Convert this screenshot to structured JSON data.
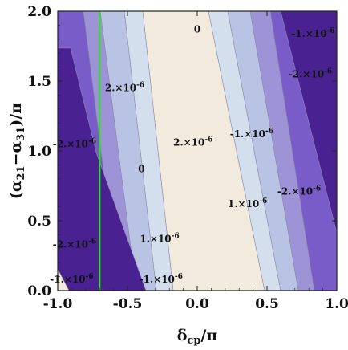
{
  "chart_data": {
    "type": "contour",
    "title": "",
    "xlabel": "δcp/π",
    "xlabel_main": "δ",
    "xlabel_sub": "cp",
    "xlabel_tail": "/π",
    "ylabel": "(α21−α31)/π",
    "ylabel_open": "(α",
    "ylabel_sub1": "21",
    "ylabel_mid": "−α",
    "ylabel_sub2": "31",
    "ylabel_tail": ")/π",
    "xlim": [
      -1.0,
      1.0
    ],
    "ylim": [
      0.0,
      2.0
    ],
    "xticks": [
      "-1.0",
      "-0.5",
      "0.0",
      "0.5",
      "1.0"
    ],
    "xtick_values": [
      -1.0,
      -0.5,
      0.0,
      0.5,
      1.0
    ],
    "yticks": [
      "0.0",
      "0.5",
      "1.0",
      "1.5",
      "2.0"
    ],
    "ytick_values": [
      0.0,
      0.5,
      1.0,
      1.5,
      2.0
    ],
    "contour_levels": [
      "-2.×10^-6",
      "-1.×10^-6",
      "0",
      "1.×10^-6",
      "2.×10^-6"
    ],
    "band_colors": [
      "#4a2190",
      "#7a5cc8",
      "#9e93d6",
      "#b9c4e4",
      "#d4dfee",
      "#f2ebdd"
    ],
    "vertical_line": {
      "x": -0.7,
      "color": "#33dd33"
    },
    "contour_labels": [
      {
        "x": -0.88,
        "y": 1.05,
        "mant": "-2.×10",
        "exp": "-6"
      },
      {
        "x": -0.52,
        "y": 1.45,
        "mant": "2.×10",
        "exp": "-6"
      },
      {
        "x": -0.4,
        "y": 0.87,
        "mant": "0",
        "exp": ""
      },
      {
        "x": -0.27,
        "y": 0.37,
        "mant": "1.×10",
        "exp": "-6"
      },
      {
        "x": -0.03,
        "y": 1.06,
        "mant": "2.×10",
        "exp": "-6"
      },
      {
        "x": 0.0,
        "y": 1.87,
        "mant": "0",
        "exp": ""
      },
      {
        "x": 0.39,
        "y": 1.12,
        "mant": "-1.×10",
        "exp": "-6"
      },
      {
        "x": 0.36,
        "y": 0.62,
        "mant": "1.×10",
        "exp": "-6"
      },
      {
        "x": 0.73,
        "y": 0.71,
        "mant": "-2.×10",
        "exp": "-6"
      },
      {
        "x": 0.81,
        "y": 1.55,
        "mant": "-2.×10",
        "exp": "-6"
      },
      {
        "x": 0.83,
        "y": 1.84,
        "mant": "-1.×10",
        "exp": "-6"
      },
      {
        "x": -0.88,
        "y": 0.33,
        "mant": "-2.×10",
        "exp": "-6"
      },
      {
        "x": -0.9,
        "y": 0.08,
        "mant": "-1.×10",
        "exp": "-6"
      },
      {
        "x": -0.26,
        "y": 0.08,
        "mant": "-1.×10",
        "exp": "-6"
      }
    ]
  }
}
